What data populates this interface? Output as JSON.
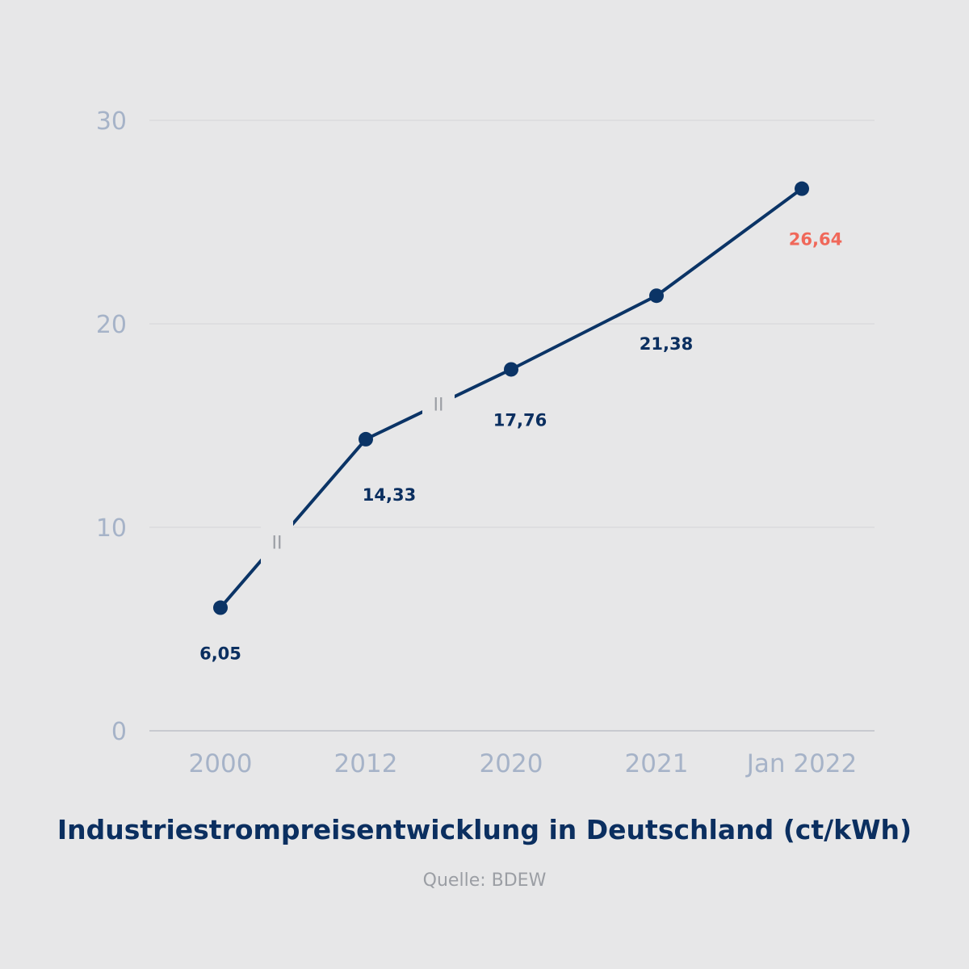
{
  "chart_data": {
    "type": "line",
    "title": "Industriestrompreisentwicklung in Deutschland (ct/kWh)",
    "source": "Quelle: BDEW",
    "categories": [
      "2000",
      "2012",
      "2020",
      "2021",
      "Jan 2022"
    ],
    "series": [
      {
        "values": [
          6.05,
          14.33,
          17.76,
          21.38,
          26.64
        ],
        "labels": [
          "6,05",
          "14,33",
          "17,76",
          "21,38",
          "26,64"
        ]
      }
    ],
    "highlight_index": 4,
    "ylim": [
      0,
      30
    ],
    "yticks": [
      0,
      10,
      20,
      30
    ],
    "grid": true,
    "axis_breaks": [
      {
        "between": [
          "2000",
          "2012"
        ],
        "symbol": "II"
      },
      {
        "between": [
          "2012",
          "2020"
        ],
        "symbol": "II"
      }
    ],
    "colors": {
      "line": "#0b3466",
      "label": "#0b2f60",
      "highlight": "#f0685a",
      "ticks": "#a6b3c8",
      "background": "#e7e7e8"
    }
  }
}
